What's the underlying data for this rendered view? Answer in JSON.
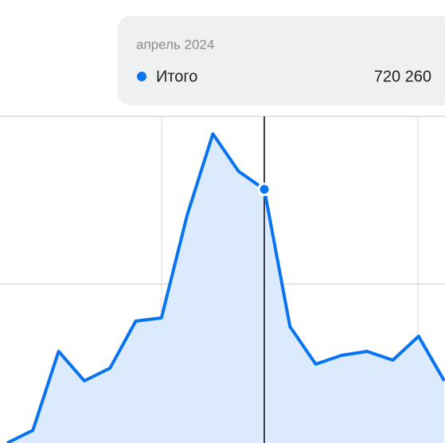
{
  "chart_data": {
    "type": "line",
    "categories": [
      null,
      null,
      null,
      null,
      null,
      null,
      null,
      null,
      null,
      null,
      "апрель 2024",
      null,
      null,
      null,
      null,
      null,
      null,
      null
    ],
    "series": [
      {
        "name": "Итого",
        "color": "#0a74f0",
        "values": [
          130000,
          159600,
          343200,
          274600,
          304200,
          413600,
          421000,
          660100,
          849200,
          762100,
          720260,
          400600,
          313500,
          333900,
          343200,
          322800,
          378400,
          274600
        ],
        "value_labels": [
          null,
          null,
          null,
          null,
          null,
          null,
          null,
          null,
          null,
          null,
          "720 260",
          null,
          null,
          null,
          null,
          null,
          null,
          null
        ]
      }
    ],
    "ylim": [
      130000,
      890000
    ],
    "yticks": [
      500000,
      890000
    ],
    "grid": true,
    "highlight": 10
  }
}
